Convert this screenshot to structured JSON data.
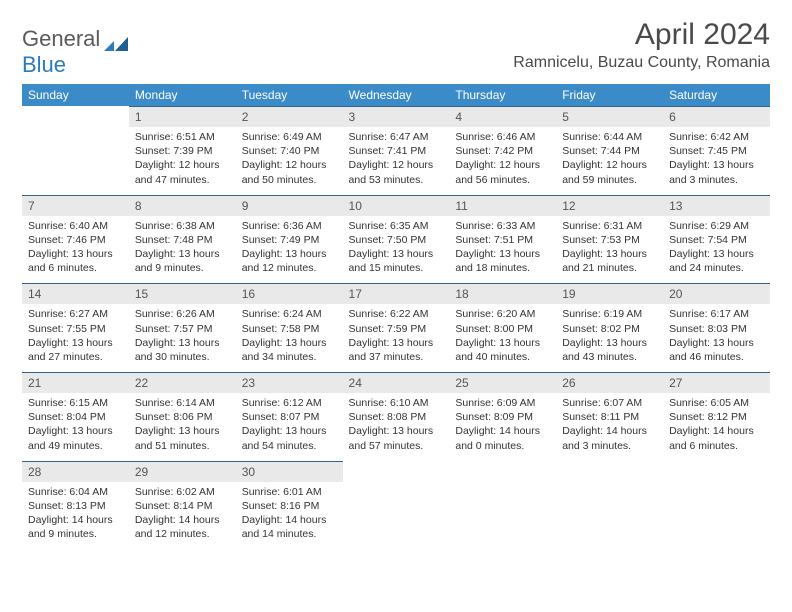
{
  "brand": {
    "part1": "General",
    "part2": "Blue"
  },
  "title": "April 2024",
  "location": "Ramnicelu, Buzau County, Romania",
  "colors": {
    "header_bg": "#3b8bc9",
    "header_text": "#ffffff",
    "daynum_bg": "#e9e9e9",
    "rule": "#38628a",
    "brand_gray": "#5a5a5a",
    "brand_blue": "#2b7bbf"
  },
  "weekdays": [
    "Sunday",
    "Monday",
    "Tuesday",
    "Wednesday",
    "Thursday",
    "Friday",
    "Saturday"
  ],
  "weeks": [
    [
      null,
      {
        "n": "1",
        "sr": "Sunrise: 6:51 AM",
        "ss": "Sunset: 7:39 PM",
        "dl": "Daylight: 12 hours and 47 minutes."
      },
      {
        "n": "2",
        "sr": "Sunrise: 6:49 AM",
        "ss": "Sunset: 7:40 PM",
        "dl": "Daylight: 12 hours and 50 minutes."
      },
      {
        "n": "3",
        "sr": "Sunrise: 6:47 AM",
        "ss": "Sunset: 7:41 PM",
        "dl": "Daylight: 12 hours and 53 minutes."
      },
      {
        "n": "4",
        "sr": "Sunrise: 6:46 AM",
        "ss": "Sunset: 7:42 PM",
        "dl": "Daylight: 12 hours and 56 minutes."
      },
      {
        "n": "5",
        "sr": "Sunrise: 6:44 AM",
        "ss": "Sunset: 7:44 PM",
        "dl": "Daylight: 12 hours and 59 minutes."
      },
      {
        "n": "6",
        "sr": "Sunrise: 6:42 AM",
        "ss": "Sunset: 7:45 PM",
        "dl": "Daylight: 13 hours and 3 minutes."
      }
    ],
    [
      {
        "n": "7",
        "sr": "Sunrise: 6:40 AM",
        "ss": "Sunset: 7:46 PM",
        "dl": "Daylight: 13 hours and 6 minutes."
      },
      {
        "n": "8",
        "sr": "Sunrise: 6:38 AM",
        "ss": "Sunset: 7:48 PM",
        "dl": "Daylight: 13 hours and 9 minutes."
      },
      {
        "n": "9",
        "sr": "Sunrise: 6:36 AM",
        "ss": "Sunset: 7:49 PM",
        "dl": "Daylight: 13 hours and 12 minutes."
      },
      {
        "n": "10",
        "sr": "Sunrise: 6:35 AM",
        "ss": "Sunset: 7:50 PM",
        "dl": "Daylight: 13 hours and 15 minutes."
      },
      {
        "n": "11",
        "sr": "Sunrise: 6:33 AM",
        "ss": "Sunset: 7:51 PM",
        "dl": "Daylight: 13 hours and 18 minutes."
      },
      {
        "n": "12",
        "sr": "Sunrise: 6:31 AM",
        "ss": "Sunset: 7:53 PM",
        "dl": "Daylight: 13 hours and 21 minutes."
      },
      {
        "n": "13",
        "sr": "Sunrise: 6:29 AM",
        "ss": "Sunset: 7:54 PM",
        "dl": "Daylight: 13 hours and 24 minutes."
      }
    ],
    [
      {
        "n": "14",
        "sr": "Sunrise: 6:27 AM",
        "ss": "Sunset: 7:55 PM",
        "dl": "Daylight: 13 hours and 27 minutes."
      },
      {
        "n": "15",
        "sr": "Sunrise: 6:26 AM",
        "ss": "Sunset: 7:57 PM",
        "dl": "Daylight: 13 hours and 30 minutes."
      },
      {
        "n": "16",
        "sr": "Sunrise: 6:24 AM",
        "ss": "Sunset: 7:58 PM",
        "dl": "Daylight: 13 hours and 34 minutes."
      },
      {
        "n": "17",
        "sr": "Sunrise: 6:22 AM",
        "ss": "Sunset: 7:59 PM",
        "dl": "Daylight: 13 hours and 37 minutes."
      },
      {
        "n": "18",
        "sr": "Sunrise: 6:20 AM",
        "ss": "Sunset: 8:00 PM",
        "dl": "Daylight: 13 hours and 40 minutes."
      },
      {
        "n": "19",
        "sr": "Sunrise: 6:19 AM",
        "ss": "Sunset: 8:02 PM",
        "dl": "Daylight: 13 hours and 43 minutes."
      },
      {
        "n": "20",
        "sr": "Sunrise: 6:17 AM",
        "ss": "Sunset: 8:03 PM",
        "dl": "Daylight: 13 hours and 46 minutes."
      }
    ],
    [
      {
        "n": "21",
        "sr": "Sunrise: 6:15 AM",
        "ss": "Sunset: 8:04 PM",
        "dl": "Daylight: 13 hours and 49 minutes."
      },
      {
        "n": "22",
        "sr": "Sunrise: 6:14 AM",
        "ss": "Sunset: 8:06 PM",
        "dl": "Daylight: 13 hours and 51 minutes."
      },
      {
        "n": "23",
        "sr": "Sunrise: 6:12 AM",
        "ss": "Sunset: 8:07 PM",
        "dl": "Daylight: 13 hours and 54 minutes."
      },
      {
        "n": "24",
        "sr": "Sunrise: 6:10 AM",
        "ss": "Sunset: 8:08 PM",
        "dl": "Daylight: 13 hours and 57 minutes."
      },
      {
        "n": "25",
        "sr": "Sunrise: 6:09 AM",
        "ss": "Sunset: 8:09 PM",
        "dl": "Daylight: 14 hours and 0 minutes."
      },
      {
        "n": "26",
        "sr": "Sunrise: 6:07 AM",
        "ss": "Sunset: 8:11 PM",
        "dl": "Daylight: 14 hours and 3 minutes."
      },
      {
        "n": "27",
        "sr": "Sunrise: 6:05 AM",
        "ss": "Sunset: 8:12 PM",
        "dl": "Daylight: 14 hours and 6 minutes."
      }
    ],
    [
      {
        "n": "28",
        "sr": "Sunrise: 6:04 AM",
        "ss": "Sunset: 8:13 PM",
        "dl": "Daylight: 14 hours and 9 minutes."
      },
      {
        "n": "29",
        "sr": "Sunrise: 6:02 AM",
        "ss": "Sunset: 8:14 PM",
        "dl": "Daylight: 14 hours and 12 minutes."
      },
      {
        "n": "30",
        "sr": "Sunrise: 6:01 AM",
        "ss": "Sunset: 8:16 PM",
        "dl": "Daylight: 14 hours and 14 minutes."
      },
      null,
      null,
      null,
      null
    ]
  ]
}
